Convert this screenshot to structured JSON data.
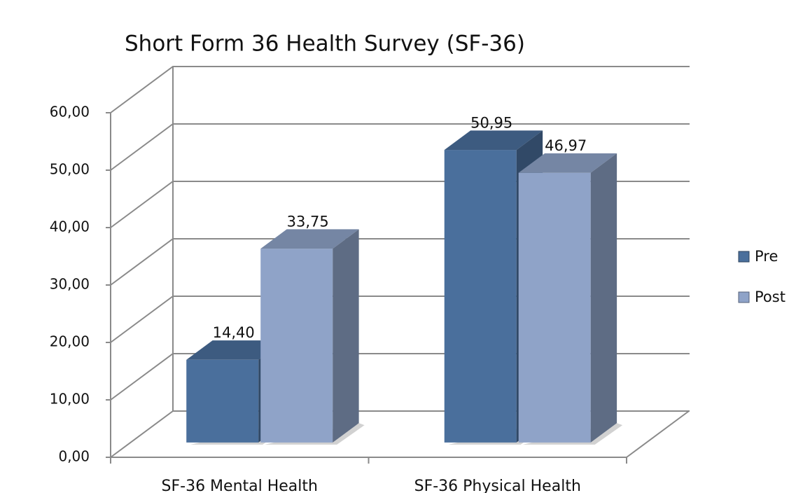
{
  "chart_data": {
    "type": "bar3d",
    "title": "Short Form 36 Health Survey (SF-36)",
    "categories": [
      "SF-36 Mental Health",
      "SF-36 Physical Health"
    ],
    "series": [
      {
        "name": "Pre",
        "color": "#4a6f9c",
        "values": [
          14.4,
          50.95
        ],
        "value_labels": [
          "14,40",
          "50,95"
        ]
      },
      {
        "name": "Post",
        "color": "#8fa3c8",
        "values": [
          33.75,
          46.97
        ],
        "value_labels": [
          "33,75",
          "46,97"
        ]
      }
    ],
    "ylim": [
      0,
      60
    ],
    "yticks": [
      {
        "value": 0,
        "label": "0,00"
      },
      {
        "value": 10,
        "label": "10,00"
      },
      {
        "value": 20,
        "label": "20,00"
      },
      {
        "value": 30,
        "label": "30,00"
      },
      {
        "value": 40,
        "label": "40,00"
      },
      {
        "value": 50,
        "label": "50,00"
      },
      {
        "value": 60,
        "label": "60,00"
      }
    ],
    "grid": true,
    "legend": "right"
  }
}
